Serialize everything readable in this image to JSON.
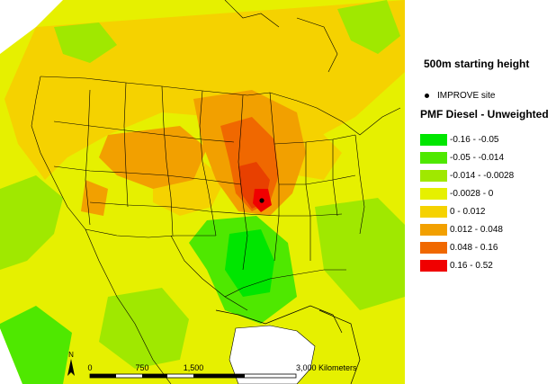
{
  "map": {
    "subtitle": "500m starting height",
    "site_label": "IMPROVE site",
    "legend_title": "PMF Diesel - Unweighted",
    "legend": [
      {
        "label": "-0.16 - -0.05",
        "color": "#00e600"
      },
      {
        "label": "-0.05 - -0.014",
        "color": "#4fe800"
      },
      {
        "label": "-0.014 - -0.0028",
        "color": "#a0e800"
      },
      {
        "label": "-0.0028 - 0",
        "color": "#e6f000"
      },
      {
        "label": "0 - 0.012",
        "color": "#f5d200"
      },
      {
        "label": "0.012 - 0.048",
        "color": "#f2a000"
      },
      {
        "label": "0.048 - 0.16",
        "color": "#f06800"
      },
      {
        "label": "0.16 - 0.52",
        "color": "#f00000"
      }
    ],
    "north_label": "N",
    "scale": {
      "ticks": [
        "0",
        "750",
        "1,500",
        "3,000"
      ],
      "unit": "Kilometers"
    }
  }
}
